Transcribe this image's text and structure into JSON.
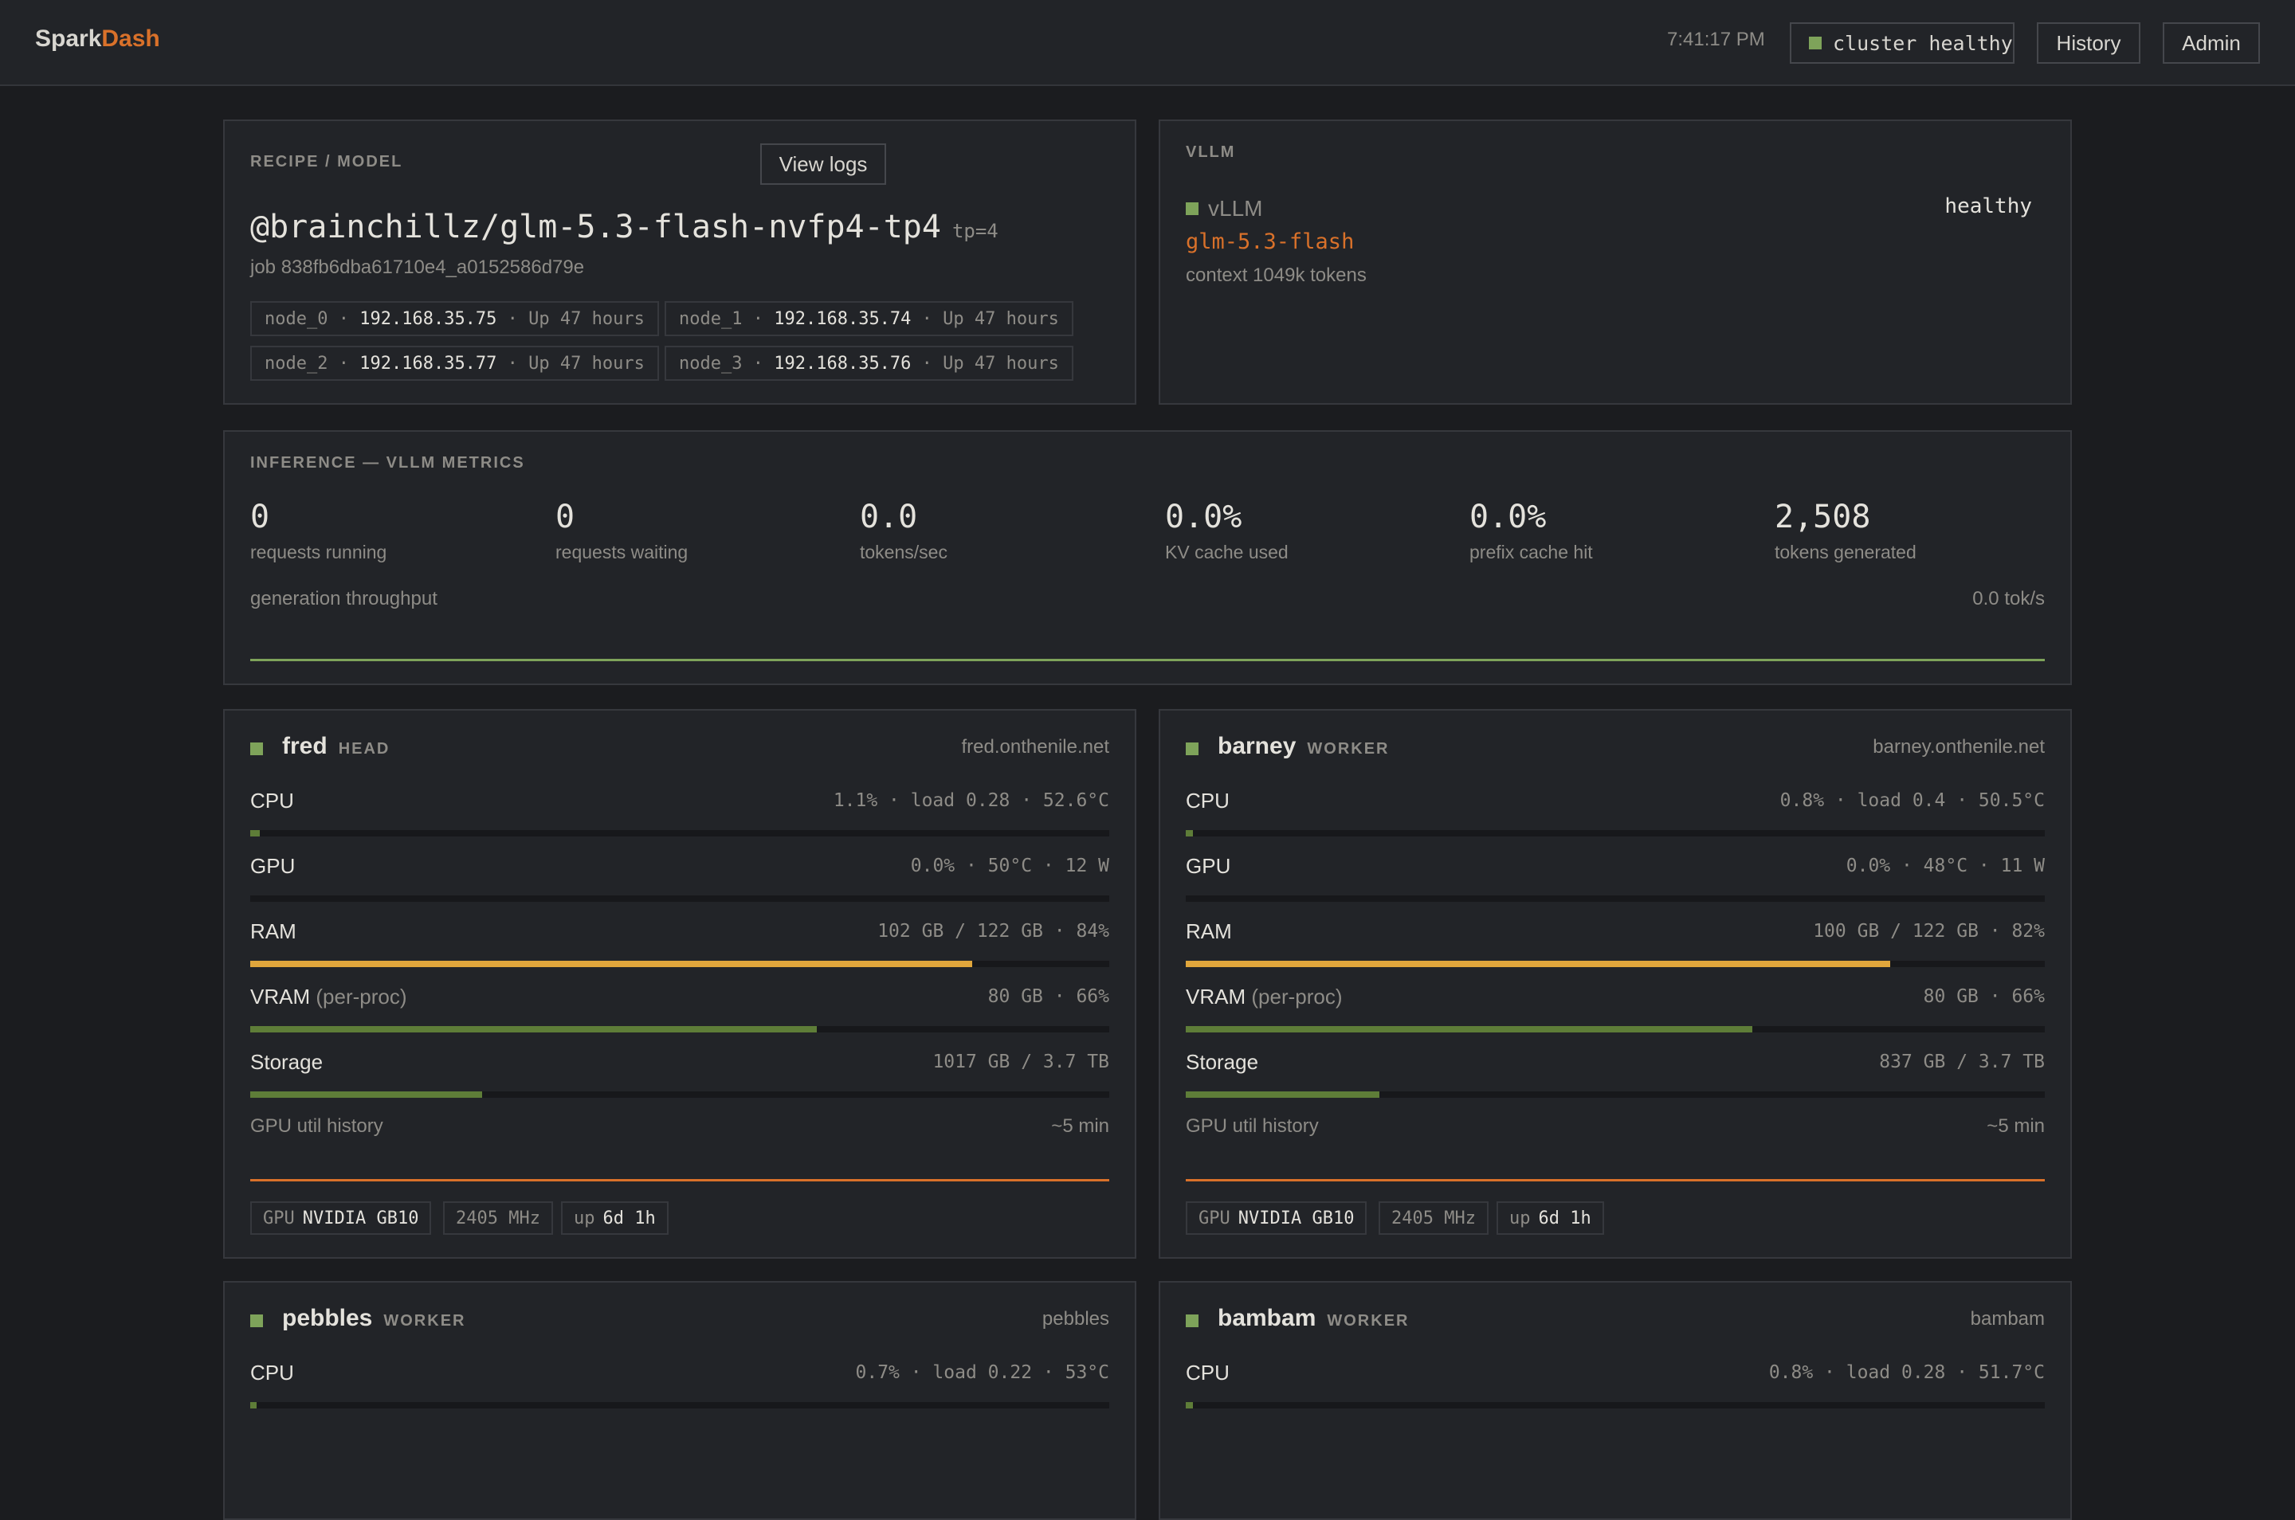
{
  "app": {
    "brand_part1": "Spark",
    "brand_part2": "Dash"
  },
  "topbar": {
    "time": "7:41:17 PM",
    "status": "cluster healthy",
    "history_label": "History",
    "admin_label": "Admin"
  },
  "recipe": {
    "section_title": "RECIPE / MODEL",
    "view_logs_label": "View logs",
    "model": "@brainchillz/glm-5.3-flash-nvfp4-tp4",
    "tp": "tp=4",
    "job": "job 838fb6dba61710e4_a0152586d79e",
    "nodes": [
      {
        "name": "node_0",
        "ip": "192.168.35.75",
        "uptime": "Up 47 hours"
      },
      {
        "name": "node_1",
        "ip": "192.168.35.74",
        "uptime": "Up 47 hours"
      },
      {
        "name": "node_2",
        "ip": "192.168.35.77",
        "uptime": "Up 47 hours"
      },
      {
        "name": "node_3",
        "ip": "192.168.35.76",
        "uptime": "Up 47 hours"
      }
    ],
    "sep": "·"
  },
  "vllm": {
    "section_title": "VLLM",
    "engine": "vLLM",
    "health": "healthy",
    "model": "glm-5.3-flash",
    "context": "context 1049k tokens"
  },
  "inference": {
    "section_title": "INFERENCE — VLLM METRICS",
    "metrics": [
      {
        "value": "0",
        "label": "requests running"
      },
      {
        "value": "0",
        "label": "requests waiting"
      },
      {
        "value": "0.0",
        "label": "tokens/sec"
      },
      {
        "value": "0.0%",
        "label": "KV cache used"
      },
      {
        "value": "0.0%",
        "label": "prefix cache hit"
      },
      {
        "value": "2,508",
        "label": "tokens generated"
      }
    ],
    "throughput_label": "generation throughput",
    "throughput_value": "0.0 tok/s"
  },
  "colors": {
    "accent": "#d9712a",
    "ok": "#7ea35a",
    "bar_green": "#5e7d38",
    "bar_amber": "#e0a63c"
  },
  "hosts": [
    {
      "name": "fred",
      "role": "HEAD",
      "host": "fred.onthenile.net",
      "cpu": {
        "label": "CPU",
        "value": "1.1% · load 0.28 · 52.6°C",
        "level": 0.011
      },
      "gpu": {
        "label": "GPU",
        "value": "0.0% · 50°C · 12 W",
        "level": 0.0
      },
      "ram": {
        "label": "RAM",
        "value": "102 GB / 122 GB · 84%",
        "level": 0.84
      },
      "vram": {
        "label": "VRAM",
        "sub": "(per-proc)",
        "value": "80 GB · 66%",
        "level": 0.66
      },
      "storage": {
        "label": "Storage",
        "value": "1017 GB / 3.7 TB",
        "level": 0.27
      },
      "history_label": "GPU util history",
      "history_window": "~5 min",
      "chips": {
        "gpu_prefix": "GPU",
        "gpu_model": "NVIDIA GB10",
        "clock": "2405 MHz",
        "up_prefix": "up",
        "uptime": "6d 1h"
      }
    },
    {
      "name": "barney",
      "role": "WORKER",
      "host": "barney.onthenile.net",
      "cpu": {
        "label": "CPU",
        "value": "0.8% · load 0.4 · 50.5°C",
        "level": 0.008
      },
      "gpu": {
        "label": "GPU",
        "value": "0.0% · 48°C · 11 W",
        "level": 0.0
      },
      "ram": {
        "label": "RAM",
        "value": "100 GB / 122 GB · 82%",
        "level": 0.82
      },
      "vram": {
        "label": "VRAM",
        "sub": "(per-proc)",
        "value": "80 GB · 66%",
        "level": 0.66
      },
      "storage": {
        "label": "Storage",
        "value": "837 GB / 3.7 TB",
        "level": 0.225
      },
      "history_label": "GPU util history",
      "history_window": "~5 min",
      "chips": {
        "gpu_prefix": "GPU",
        "gpu_model": "NVIDIA GB10",
        "clock": "2405 MHz",
        "up_prefix": "up",
        "uptime": "6d 1h"
      }
    },
    {
      "name": "pebbles",
      "role": "WORKER",
      "host": "pebbles",
      "cpu": {
        "label": "CPU",
        "value": "0.7% · load 0.22 · 53°C",
        "level": 0.007
      }
    },
    {
      "name": "bambam",
      "role": "WORKER",
      "host": "bambam",
      "cpu": {
        "label": "CPU",
        "value": "0.8% · load 0.28 · 51.7°C",
        "level": 0.008
      }
    }
  ]
}
